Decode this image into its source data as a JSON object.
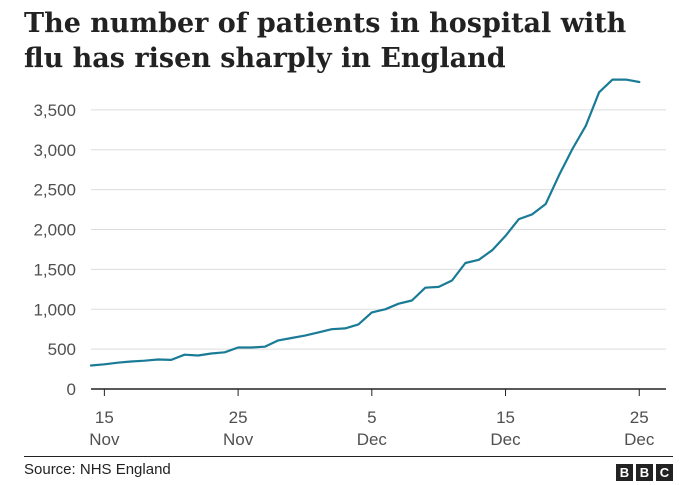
{
  "title": "The number of patients in hospital with flu has risen sharply in England",
  "source": "Source: NHS England",
  "logo": [
    "B",
    "B",
    "C"
  ],
  "colors": {
    "line": "#1a7b96",
    "grid": "#dddddd",
    "axis": "#222222",
    "text": "#505050"
  },
  "chart_data": {
    "type": "line",
    "title": "The number of patients in hospital with flu has risen sharply in England",
    "xlabel": "",
    "ylabel": "",
    "ylim": [
      0,
      4000
    ],
    "yticks": [
      0,
      500,
      1000,
      1500,
      2000,
      2500,
      3000,
      3500
    ],
    "ytick_labels": [
      "0",
      "500",
      "1,000",
      "1,500",
      "2,000",
      "2,500",
      "3,000",
      "3,500"
    ],
    "grid": true,
    "legend": "none",
    "xlim": [
      "2022-11-14",
      "2022-12-27"
    ],
    "xticks": [
      {
        "date": "2022-11-15",
        "day": "15",
        "month": "Nov"
      },
      {
        "date": "2022-11-25",
        "day": "25",
        "month": "Nov"
      },
      {
        "date": "2022-12-05",
        "day": "5",
        "month": "Dec"
      },
      {
        "date": "2022-12-15",
        "day": "15",
        "month": "Dec"
      },
      {
        "date": "2022-12-25",
        "day": "25",
        "month": "Dec"
      }
    ],
    "x": [
      "2022-11-14",
      "2022-11-15",
      "2022-11-16",
      "2022-11-17",
      "2022-11-18",
      "2022-11-19",
      "2022-11-20",
      "2022-11-21",
      "2022-11-22",
      "2022-11-23",
      "2022-11-24",
      "2022-11-25",
      "2022-11-26",
      "2022-11-27",
      "2022-11-28",
      "2022-11-29",
      "2022-11-30",
      "2022-12-01",
      "2022-12-02",
      "2022-12-03",
      "2022-12-04",
      "2022-12-05",
      "2022-12-06",
      "2022-12-07",
      "2022-12-08",
      "2022-12-09",
      "2022-12-10",
      "2022-12-11",
      "2022-12-12",
      "2022-12-13",
      "2022-12-14",
      "2022-12-15",
      "2022-12-16",
      "2022-12-17",
      "2022-12-18",
      "2022-12-19",
      "2022-12-20",
      "2022-12-21",
      "2022-12-22",
      "2022-12-23",
      "2022-12-24",
      "2022-12-25"
    ],
    "values": [
      295,
      310,
      330,
      345,
      355,
      370,
      365,
      430,
      420,
      445,
      460,
      520,
      520,
      530,
      610,
      640,
      670,
      710,
      750,
      760,
      810,
      960,
      1000,
      1070,
      1110,
      1270,
      1280,
      1360,
      1580,
      1620,
      1740,
      1920,
      2130,
      2190,
      2320,
      2680,
      3010,
      3300,
      3720,
      3880,
      3880,
      3850
    ]
  }
}
